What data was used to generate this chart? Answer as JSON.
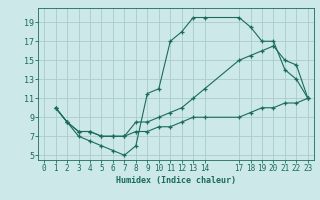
{
  "title": "",
  "xlabel": "Humidex (Indice chaleur)",
  "ylabel": "",
  "bg_color": "#cce8e8",
  "grid_color": "#aacccc",
  "line_color": "#1a6b5a",
  "xlim": [
    -0.5,
    23.5
  ],
  "ylim": [
    4.5,
    20.5
  ],
  "xticks": [
    0,
    1,
    2,
    3,
    4,
    5,
    6,
    7,
    8,
    9,
    10,
    11,
    12,
    13,
    14,
    17,
    18,
    19,
    20,
    21,
    22,
    23
  ],
  "yticks": [
    5,
    7,
    9,
    11,
    13,
    15,
    17,
    19
  ],
  "line1_x": [
    1,
    2,
    3,
    4,
    5,
    6,
    7,
    8,
    9,
    10,
    11,
    12,
    13,
    14,
    17,
    18,
    19,
    20,
    21,
    22,
    23
  ],
  "line1_y": [
    10,
    8.5,
    7,
    6.5,
    6,
    5.5,
    5,
    6,
    11.5,
    12,
    17,
    18,
    19.5,
    19.5,
    19.5,
    18.5,
    17,
    17,
    14,
    13,
    11
  ],
  "line2_x": [
    1,
    2,
    3,
    4,
    5,
    6,
    7,
    8,
    9,
    10,
    11,
    12,
    13,
    14,
    17,
    18,
    19,
    20,
    21,
    22,
    23
  ],
  "line2_y": [
    10,
    8.5,
    7.5,
    7.5,
    7,
    7,
    7,
    8.5,
    8.5,
    9,
    9.5,
    10,
    11,
    12,
    15,
    15.5,
    16,
    16.5,
    15,
    14.5,
    11
  ],
  "line3_x": [
    1,
    2,
    3,
    4,
    5,
    6,
    7,
    8,
    9,
    10,
    11,
    12,
    13,
    14,
    17,
    18,
    19,
    20,
    21,
    22,
    23
  ],
  "line3_y": [
    10,
    8.5,
    7.5,
    7.5,
    7,
    7,
    7,
    7.5,
    7.5,
    8,
    8,
    8.5,
    9,
    9,
    9,
    9.5,
    10,
    10,
    10.5,
    10.5,
    11
  ]
}
